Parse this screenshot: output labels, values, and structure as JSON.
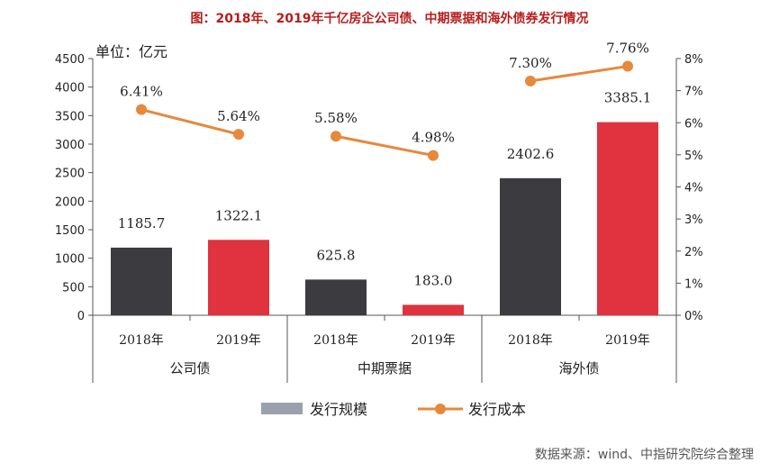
{
  "title": "图：2018年、2019年千亿房企公司债、中期票据和海外债券发行情况",
  "source": "数据来源：wind、中指研究院综合整理",
  "chart_data": {
    "type": "bar",
    "unit_label": "单位：亿元",
    "groups": [
      "公司债",
      "中期票据",
      "海外债"
    ],
    "categories": [
      "2018年",
      "2019年",
      "2018年",
      "2019年",
      "2018年",
      "2019年"
    ],
    "series": [
      {
        "name": "发行规模",
        "type": "bar",
        "axis": "left",
        "values": [
          1185.7,
          1322.1,
          625.8,
          183.0,
          2402.6,
          3385.1
        ],
        "labels": [
          "1185.7",
          "1322.1",
          "625.8",
          "183.0",
          "2402.6",
          "3385.1"
        ]
      },
      {
        "name": "发行成本",
        "type": "line",
        "axis": "right",
        "values": [
          6.41,
          5.64,
          5.58,
          4.98,
          7.3,
          7.76
        ],
        "labels": [
          "6.41%",
          "5.64%",
          "5.58%",
          "4.98%",
          "7.30%",
          "7.76%"
        ]
      }
    ],
    "y_left": {
      "min": 0,
      "max": 4500,
      "step": 500,
      "ticks": [
        "0",
        "500",
        "1000",
        "1500",
        "2000",
        "2500",
        "3000",
        "3500",
        "4000",
        "4500"
      ]
    },
    "y_right": {
      "min": 0,
      "max": 8,
      "step": 1,
      "ticks": [
        "0%",
        "1%",
        "2%",
        "3%",
        "4%",
        "5%",
        "6%",
        "7%",
        "8%"
      ]
    },
    "legend_position": "bottom",
    "colors": {
      "bar_2018": "#3b3b40",
      "bar_2019": "#e0323f",
      "line": "#e8883a",
      "legend_bar": "#9aa1ad"
    }
  }
}
